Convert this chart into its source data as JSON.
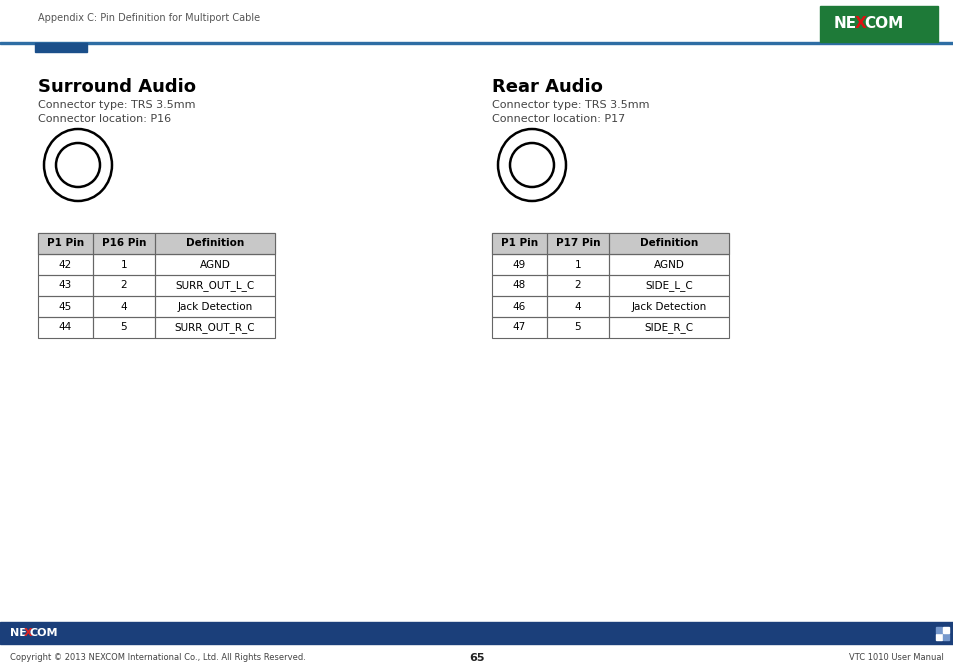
{
  "page_header_text": "Appendix C: Pin Definition for Multiport Cable",
  "left_section_title": "Surround Audio",
  "left_connector_type": "Connector type: TRS 3.5mm",
  "left_connector_location": "Connector location: P16",
  "right_section_title": "Rear Audio",
  "right_connector_type": "Connector type: TRS 3.5mm",
  "right_connector_location": "Connector location: P17",
  "left_table_headers": [
    "P1 Pin",
    "P16 Pin",
    "Definition"
  ],
  "left_table_data": [
    [
      "42",
      "1",
      "AGND"
    ],
    [
      "43",
      "2",
      "SURR_OUT_L_C"
    ],
    [
      "45",
      "4",
      "Jack Detection"
    ],
    [
      "44",
      "5",
      "SURR_OUT_R_C"
    ]
  ],
  "right_table_headers": [
    "P1 Pin",
    "P17 Pin",
    "Definition"
  ],
  "right_table_data": [
    [
      "49",
      "1",
      "AGND"
    ],
    [
      "48",
      "2",
      "SIDE_L_C"
    ],
    [
      "46",
      "4",
      "Jack Detection"
    ],
    [
      "47",
      "5",
      "SIDE_R_C"
    ]
  ],
  "footer_text_left": "Copyright © 2013 NEXCOM International Co., Ltd. All Rights Reserved.",
  "footer_text_center": "65",
  "footer_text_right": "VTC 1010 User Manual",
  "header_bar_color": "#1b4f8a",
  "header_small_rect_color": "#1b4f8a",
  "nexcom_logo_bg": "#1e7c3a",
  "footer_bar_color": "#1b3f7a",
  "table_header_bg": "#c8c8c8",
  "table_border_color": "#666666",
  "line_color": "#2e6da4",
  "text_color": "#222222",
  "sub_text_color": "#444444"
}
